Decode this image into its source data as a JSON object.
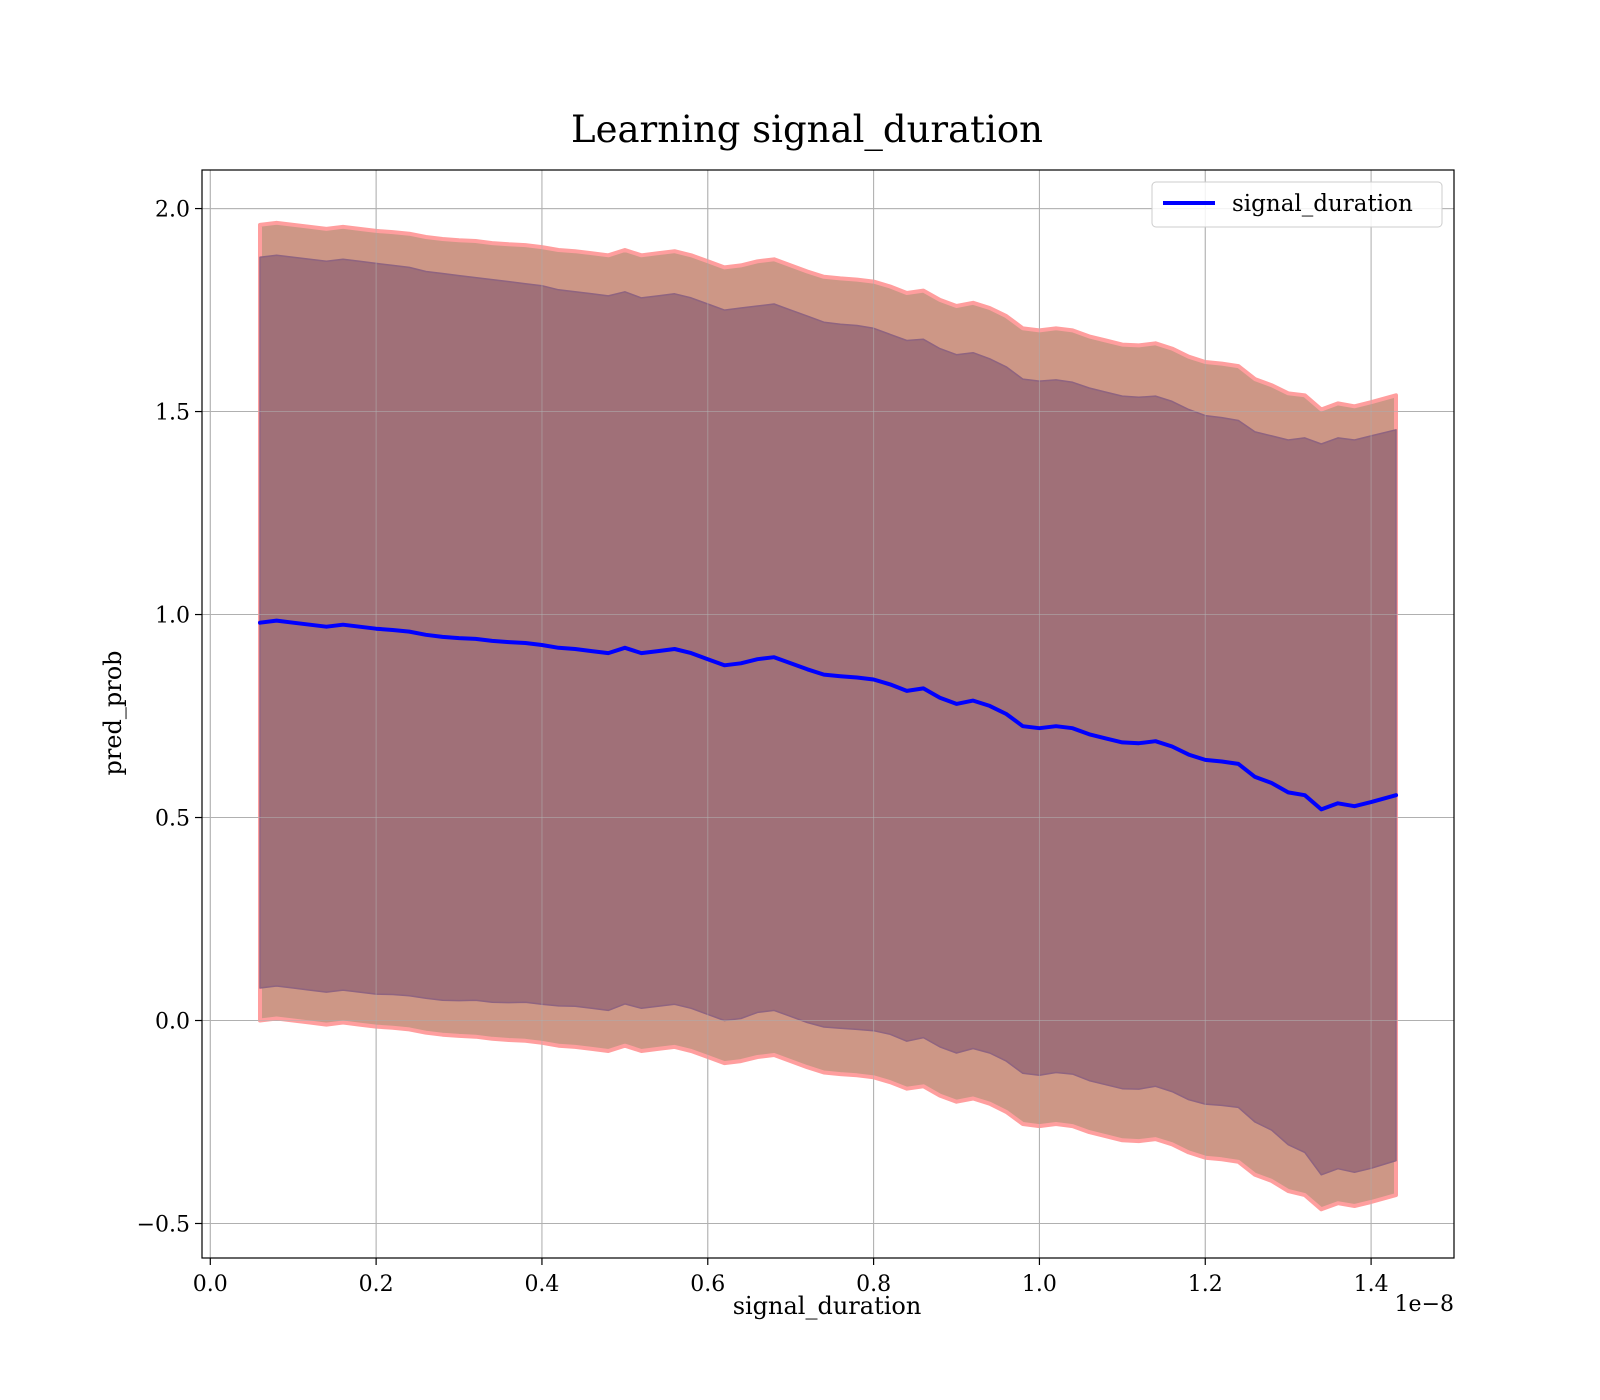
{
  "chart_data": {
    "type": "line",
    "title": "Learning signal_duration",
    "xlabel": "signal_duration",
    "ylabel": "pred_prob",
    "x_offset_text": "1e−8",
    "xlim": [
      -0.01,
      1.5
    ],
    "ylim": [
      -0.585,
      2.095
    ],
    "xticks": [
      0.0,
      0.2,
      0.4,
      0.6,
      0.8,
      1.0,
      1.2,
      1.4
    ],
    "xtick_labels": [
      "0.0",
      "0.2",
      "0.4",
      "0.6",
      "0.8",
      "1.0",
      "1.2",
      "1.4"
    ],
    "yticks": [
      -0.5,
      0.0,
      0.5,
      1.0,
      1.5,
      2.0
    ],
    "ytick_labels": [
      "−0.5",
      "0.0",
      "0.5",
      "1.0",
      "1.5",
      "2.0"
    ],
    "grid": true,
    "legend_position": "top-right",
    "colors": {
      "line": "#0000ff",
      "inner_band": "#a07078",
      "outer_band": "#c98e7c",
      "outer_edge": "#ff9e9e",
      "inner_edge": "#8f6480"
    },
    "series": [
      {
        "name": "signal_duration",
        "x": [
          0.06,
          0.08,
          0.1,
          0.12,
          0.14,
          0.16,
          0.18,
          0.2,
          0.22,
          0.24,
          0.26,
          0.28,
          0.3,
          0.32,
          0.34,
          0.36,
          0.38,
          0.4,
          0.42,
          0.44,
          0.46,
          0.48,
          0.5,
          0.52,
          0.54,
          0.56,
          0.58,
          0.6,
          0.62,
          0.64,
          0.66,
          0.68,
          0.7,
          0.72,
          0.74,
          0.76,
          0.78,
          0.8,
          0.82,
          0.84,
          0.86,
          0.88,
          0.9,
          0.92,
          0.94,
          0.96,
          0.98,
          1.0,
          1.02,
          1.04,
          1.06,
          1.08,
          1.1,
          1.12,
          1.14,
          1.16,
          1.18,
          1.2,
          1.22,
          1.24,
          1.26,
          1.28,
          1.3,
          1.32,
          1.34,
          1.36,
          1.38,
          1.4,
          1.43
        ],
        "y": [
          0.98,
          0.985,
          0.98,
          0.975,
          0.97,
          0.975,
          0.97,
          0.965,
          0.962,
          0.958,
          0.95,
          0.945,
          0.942,
          0.94,
          0.935,
          0.932,
          0.93,
          0.925,
          0.918,
          0.915,
          0.91,
          0.905,
          0.918,
          0.905,
          0.91,
          0.915,
          0.905,
          0.89,
          0.875,
          0.88,
          0.89,
          0.895,
          0.88,
          0.865,
          0.852,
          0.848,
          0.845,
          0.84,
          0.828,
          0.812,
          0.818,
          0.795,
          0.78,
          0.788,
          0.775,
          0.755,
          0.725,
          0.72,
          0.725,
          0.72,
          0.705,
          0.695,
          0.685,
          0.683,
          0.688,
          0.675,
          0.655,
          0.642,
          0.638,
          0.632,
          0.6,
          0.585,
          0.562,
          0.555,
          0.52,
          0.535,
          0.528,
          0.538,
          0.555
        ],
        "inner_upper": [
          1.88,
          1.885,
          1.88,
          1.875,
          1.87,
          1.875,
          1.87,
          1.865,
          1.86,
          1.855,
          1.845,
          1.84,
          1.835,
          1.83,
          1.825,
          1.82,
          1.815,
          1.81,
          1.8,
          1.795,
          1.79,
          1.785,
          1.795,
          1.78,
          1.785,
          1.79,
          1.78,
          1.765,
          1.75,
          1.755,
          1.76,
          1.765,
          1.75,
          1.735,
          1.72,
          1.715,
          1.712,
          1.705,
          1.69,
          1.675,
          1.678,
          1.655,
          1.64,
          1.645,
          1.63,
          1.61,
          1.58,
          1.575,
          1.578,
          1.572,
          1.558,
          1.548,
          1.538,
          1.535,
          1.538,
          1.525,
          1.505,
          1.49,
          1.485,
          1.478,
          1.45,
          1.44,
          1.43,
          1.435,
          1.42,
          1.435,
          1.43,
          1.44,
          1.455
        ],
        "inner_lower": [
          0.08,
          0.085,
          0.08,
          0.075,
          0.07,
          0.075,
          0.07,
          0.065,
          0.064,
          0.061,
          0.055,
          0.05,
          0.049,
          0.05,
          0.045,
          0.044,
          0.045,
          0.04,
          0.036,
          0.035,
          0.03,
          0.025,
          0.041,
          0.03,
          0.035,
          0.04,
          0.03,
          0.015,
          0.0,
          0.005,
          0.02,
          0.025,
          0.01,
          -0.005,
          -0.016,
          -0.019,
          -0.022,
          -0.025,
          -0.034,
          -0.051,
          -0.042,
          -0.065,
          -0.08,
          -0.069,
          -0.08,
          -0.1,
          -0.13,
          -0.135,
          -0.128,
          -0.132,
          -0.148,
          -0.158,
          -0.168,
          -0.169,
          -0.162,
          -0.175,
          -0.195,
          -0.206,
          -0.209,
          -0.214,
          -0.25,
          -0.27,
          -0.306,
          -0.325,
          -0.38,
          -0.365,
          -0.374,
          -0.364,
          -0.345
        ],
        "outer_upper": [
          1.96,
          1.965,
          1.96,
          1.955,
          1.95,
          1.955,
          1.95,
          1.945,
          1.942,
          1.938,
          1.93,
          1.925,
          1.922,
          1.92,
          1.915,
          1.912,
          1.91,
          1.905,
          1.898,
          1.895,
          1.89,
          1.885,
          1.898,
          1.885,
          1.89,
          1.895,
          1.885,
          1.87,
          1.855,
          1.86,
          1.87,
          1.875,
          1.86,
          1.845,
          1.832,
          1.828,
          1.825,
          1.82,
          1.808,
          1.792,
          1.798,
          1.775,
          1.76,
          1.768,
          1.755,
          1.735,
          1.705,
          1.7,
          1.705,
          1.7,
          1.685,
          1.675,
          1.665,
          1.663,
          1.668,
          1.655,
          1.635,
          1.622,
          1.618,
          1.612,
          1.58,
          1.565,
          1.545,
          1.54,
          1.505,
          1.52,
          1.513,
          1.523,
          1.54
        ],
        "outer_lower": [
          0.0,
          0.005,
          0.0,
          -0.005,
          -0.01,
          -0.005,
          -0.01,
          -0.015,
          -0.018,
          -0.022,
          -0.03,
          -0.035,
          -0.038,
          -0.04,
          -0.045,
          -0.048,
          -0.05,
          -0.055,
          -0.062,
          -0.065,
          -0.07,
          -0.075,
          -0.062,
          -0.075,
          -0.07,
          -0.065,
          -0.075,
          -0.09,
          -0.105,
          -0.1,
          -0.09,
          -0.085,
          -0.1,
          -0.115,
          -0.128,
          -0.132,
          -0.135,
          -0.14,
          -0.152,
          -0.168,
          -0.162,
          -0.185,
          -0.2,
          -0.192,
          -0.205,
          -0.225,
          -0.255,
          -0.26,
          -0.255,
          -0.26,
          -0.275,
          -0.285,
          -0.295,
          -0.297,
          -0.292,
          -0.305,
          -0.325,
          -0.338,
          -0.342,
          -0.348,
          -0.38,
          -0.395,
          -0.42,
          -0.43,
          -0.465,
          -0.45,
          -0.457,
          -0.447,
          -0.43
        ]
      }
    ]
  }
}
